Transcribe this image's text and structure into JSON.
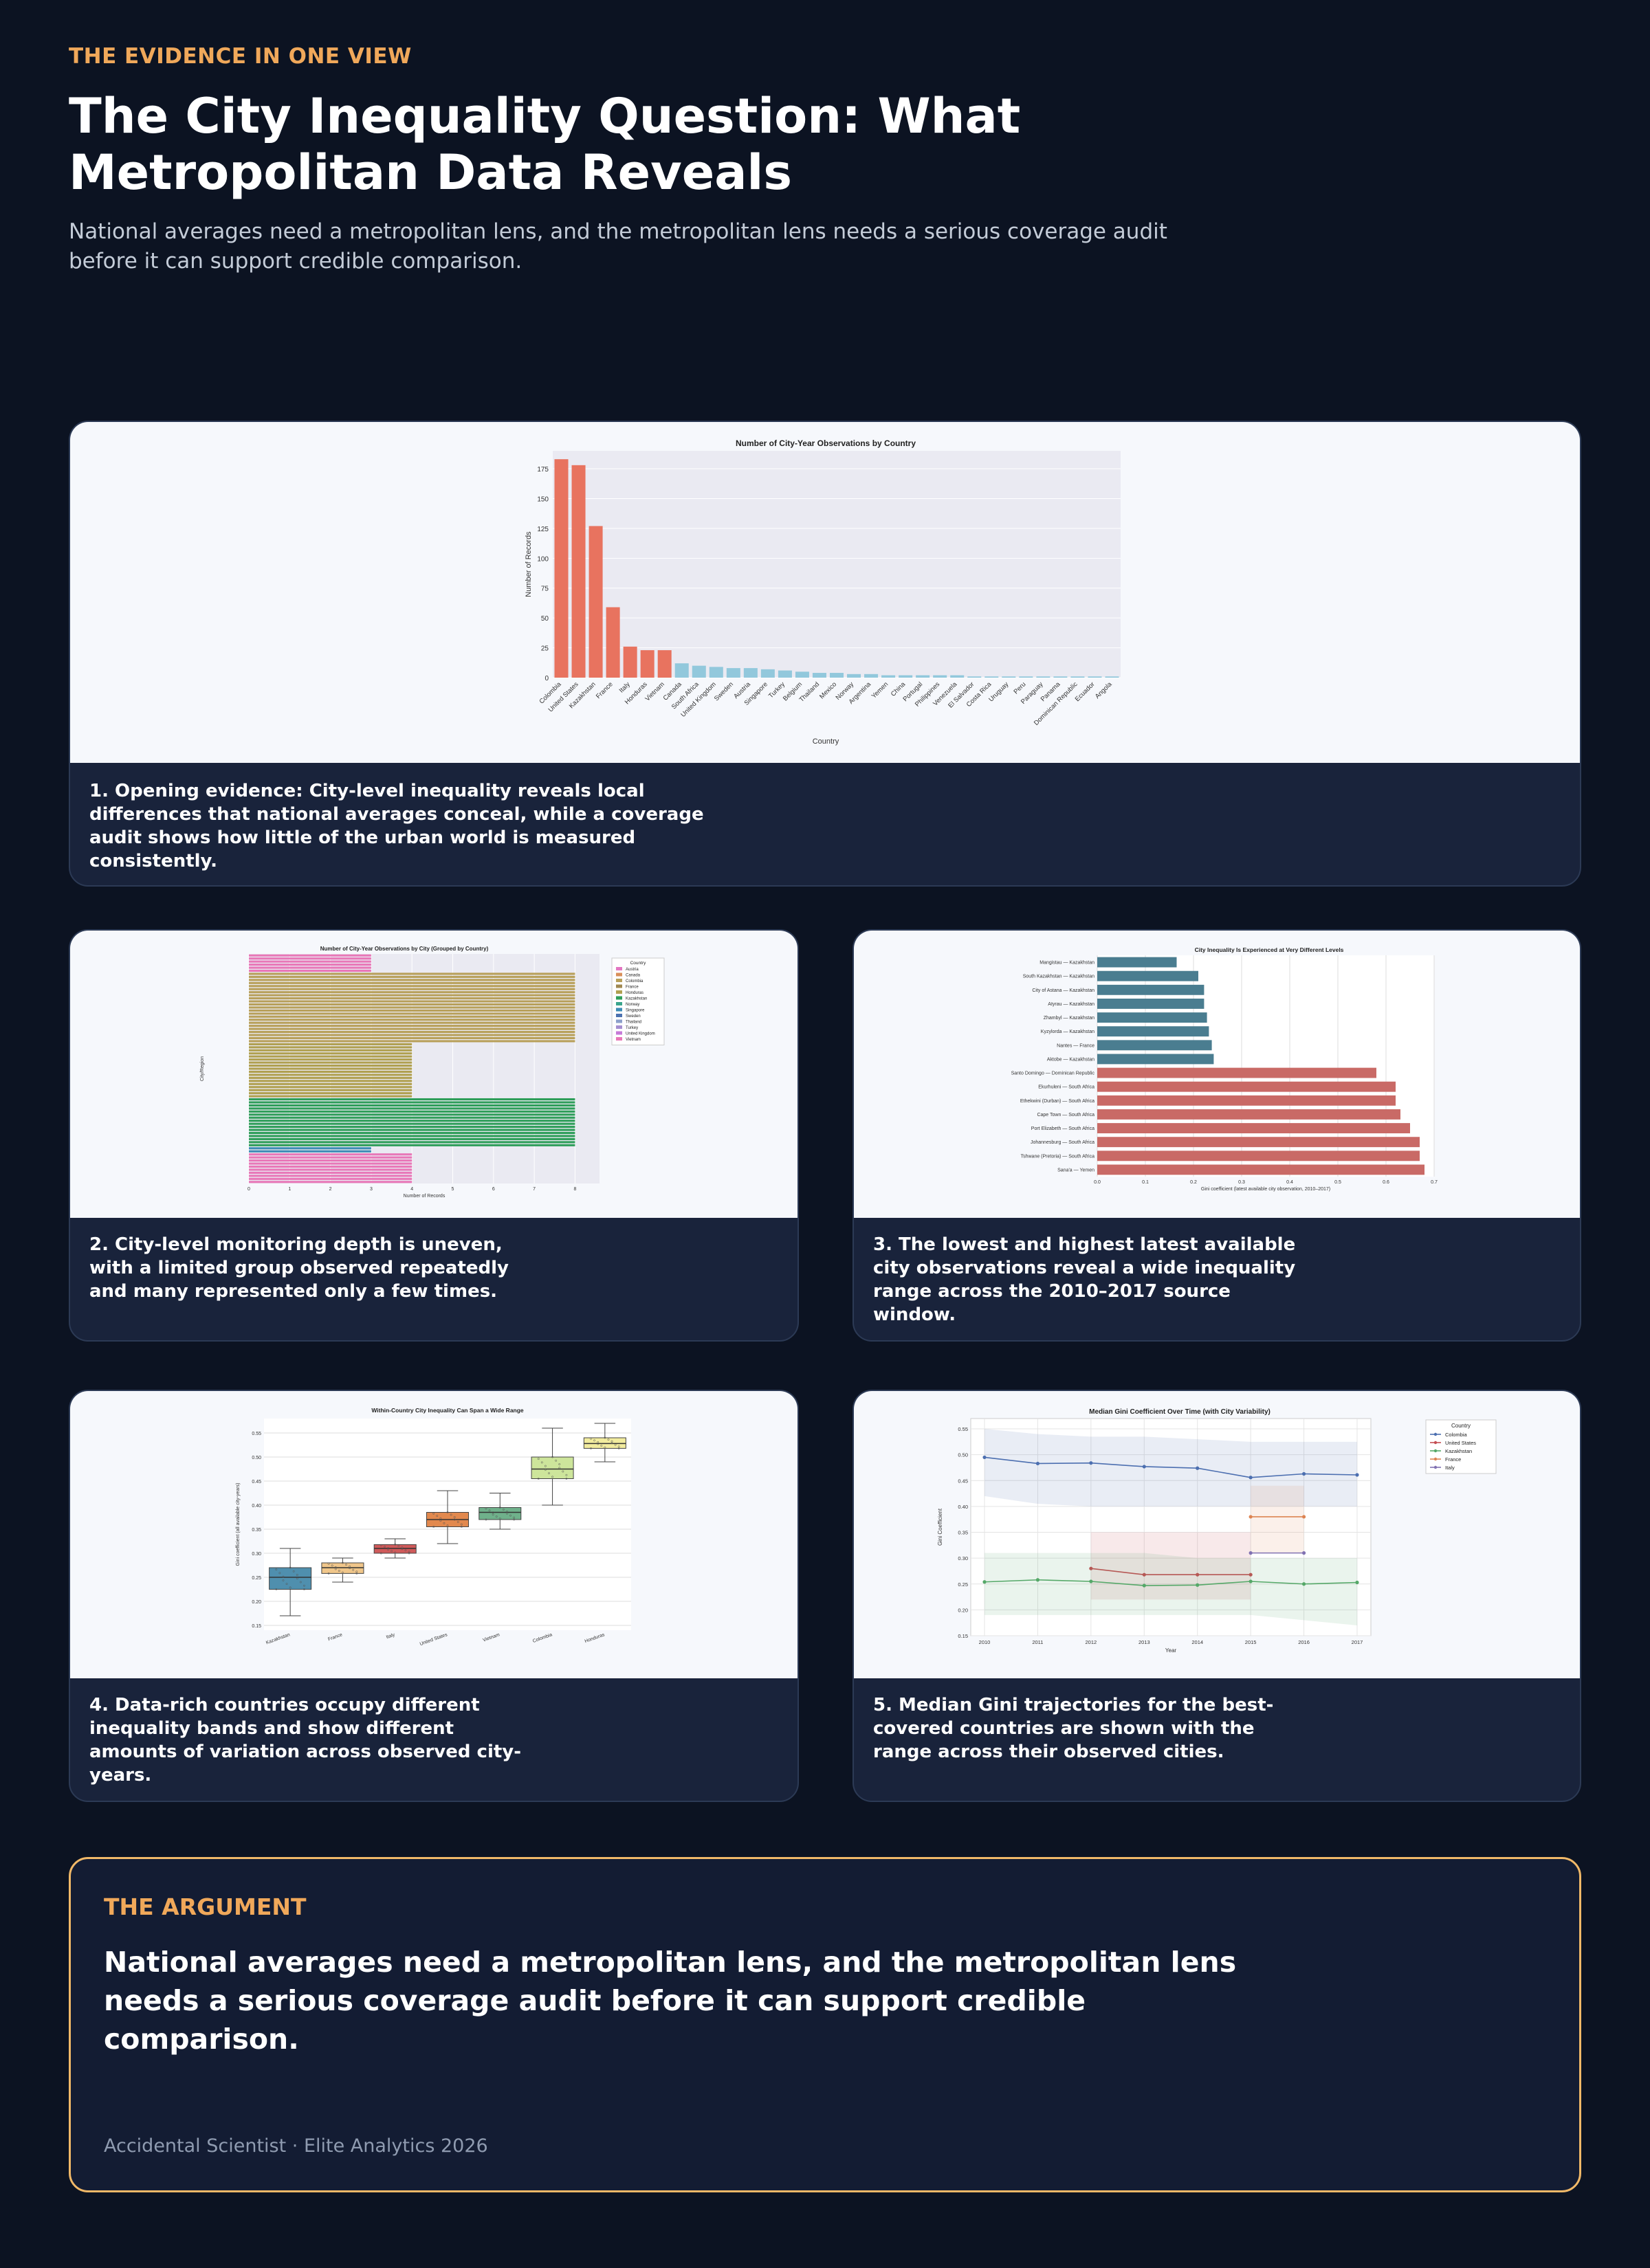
{
  "header": {
    "eyebrow": "THE EVIDENCE IN ONE VIEW",
    "title": "The City Inequality Question: What Metropolitan Data Reveals",
    "subtitle": "National averages need a metropolitan lens, and the metropolitan lens needs a serious coverage audit before it can support credible comparison."
  },
  "captions": {
    "c1": "1. Opening evidence: City-level inequality reveals local differences that national averages conceal, while a coverage audit shows how little of the urban world is measured consistently.",
    "c2": "2. City-level monitoring depth is uneven, with a limited group observed repeatedly and many represented only a few times.",
    "c3": "3. The lowest and highest latest available city observations reveal a wide inequality range across the 2010–2017 source window.",
    "c4": "4. Data-rich countries occupy different inequality bands and show different amounts of variation across observed city-years.",
    "c5": "5. Median Gini trajectories for the best-covered countries are shown with the range across their observed cities."
  },
  "argument": {
    "label": "THE ARGUMENT",
    "text": "National averages need a metropolitan lens, and the metropolitan lens needs a serious coverage audit before it can support credible comparison.",
    "footer": "Accidental Scientist · Elite Analytics 2026"
  },
  "colors": {
    "accent": "#f0a85a",
    "highlight": "#e8735f",
    "muted": "#92c8dc",
    "teal": "#4a7d90",
    "red": "#c96a66"
  },
  "chart_data": [
    {
      "type": "bar",
      "title": "Number of City-Year Observations by Country",
      "xlabel": "Country",
      "ylabel": "Number of Records",
      "ylim": [
        0,
        190
      ],
      "yticks": [
        0,
        25,
        50,
        75,
        100,
        125,
        150,
        175
      ],
      "categories": [
        "Colombia",
        "United States",
        "Kazakhstan",
        "France",
        "Italy",
        "Honduras",
        "Vietnam",
        "Canada",
        "South Africa",
        "United Kingdom",
        "Sweden",
        "Austria",
        "Singapore",
        "Turkey",
        "Belgium",
        "Thailand",
        "Mexico",
        "Norway",
        "Argentina",
        "Yemen",
        "China",
        "Portugal",
        "Philippines",
        "Venezuela",
        "El Salvador",
        "Costa Rica",
        "Uruguay",
        "Peru",
        "Paraguay",
        "Panama",
        "Dominican Republic",
        "Ecuador",
        "Angola"
      ],
      "values": [
        183,
        178,
        127,
        59,
        26,
        23,
        23,
        12,
        10,
        9,
        8,
        8,
        7,
        6,
        5,
        4,
        4,
        3,
        3,
        2,
        2,
        2,
        2,
        2,
        1,
        1,
        1,
        1,
        1,
        1,
        1,
        1,
        1
      ],
      "highlighted_count": 7
    },
    {
      "type": "bar",
      "title": "Number of City-Year Observations by City (Grouped by Country)",
      "xlabel": "Number of Records",
      "ylabel": "City/Region",
      "xlim": [
        0,
        8.6
      ],
      "xticks": [
        0,
        1,
        2,
        3,
        4,
        5,
        6,
        7,
        8
      ],
      "legend_title": "Country",
      "legend": [
        "Austria",
        "Canada",
        "Colombia",
        "France",
        "Honduras",
        "Kazakhstan",
        "Norway",
        "Singapore",
        "Sweden",
        "Thailand",
        "Turkey",
        "United Kingdom",
        "Vietnam"
      ],
      "groups": [
        {
          "country": "Vietnam",
          "rows": 6,
          "value": 3
        },
        {
          "country": "Colombia",
          "rows": 23,
          "value": 8
        },
        {
          "country": "Honduras",
          "rows": 18,
          "value": 4
        },
        {
          "country": "Kazakhstan",
          "rows": 16,
          "value": 8
        },
        {
          "country": "Singapore",
          "rows": 2,
          "value": 3
        },
        {
          "country": "Vietnam",
          "rows": 10,
          "value": 4
        }
      ]
    },
    {
      "type": "bar",
      "title": "City Inequality Is Experienced at Very Different Levels",
      "xlabel": "Gini coefficient (latest available city observation, 2010–2017)",
      "xlim": [
        0,
        0.7
      ],
      "xticks": [
        "0.0",
        "0.1",
        "0.2",
        "0.3",
        "0.4",
        "0.5",
        "0.6",
        "0.7"
      ],
      "categories": [
        "Mangistau — Kazakhstan",
        "South Kazakhstan — Kazakhstan",
        "City of Astana — Kazakhstan",
        "Atyrau — Kazakhstan",
        "Zhambyl — Kazakhstan",
        "Kyzylorda — Kazakhstan",
        "Nantes — France",
        "Aktobe — Kazakhstan",
        "Santo Domingo — Dominican Republic",
        "Ekurhuleni — South Africa",
        "Ethekwini (Durban) — South Africa",
        "Cape Town — South Africa",
        "Port Elizabeth — South Africa",
        "Johannesburg — South Africa",
        "Tshwane (Pretoria) — South Africa",
        "Sana'a — Yemen"
      ],
      "values": [
        0.165,
        0.21,
        0.222,
        0.222,
        0.228,
        0.232,
        0.238,
        0.242,
        0.58,
        0.62,
        0.62,
        0.63,
        0.65,
        0.67,
        0.67,
        0.68
      ]
    },
    {
      "type": "box",
      "title": "Within-Country City Inequality Can Span a Wide Range",
      "ylabel": "Gini coefficient (all available city-years)",
      "ylim": [
        0.14,
        0.58
      ],
      "yticks": [
        0.15,
        0.2,
        0.25,
        0.3,
        0.35,
        0.4,
        0.45,
        0.5,
        0.55
      ],
      "categories": [
        "Kazakhstan",
        "France",
        "Italy",
        "United States",
        "Vietnam",
        "Colombia",
        "Honduras"
      ],
      "boxes": [
        {
          "min": 0.17,
          "q1": 0.225,
          "median": 0.25,
          "q3": 0.27,
          "max": 0.31,
          "color": "#4f8fae"
        },
        {
          "min": 0.24,
          "q1": 0.258,
          "median": 0.27,
          "q3": 0.28,
          "max": 0.29,
          "color": "#f0c68a"
        },
        {
          "min": 0.29,
          "q1": 0.3,
          "median": 0.31,
          "q3": 0.318,
          "max": 0.33,
          "color": "#d05a5a"
        },
        {
          "min": 0.32,
          "q1": 0.355,
          "median": 0.37,
          "q3": 0.385,
          "max": 0.43,
          "color": "#e2894e"
        },
        {
          "min": 0.35,
          "q1": 0.37,
          "median": 0.385,
          "q3": 0.395,
          "max": 0.425,
          "color": "#6fb18b"
        },
        {
          "min": 0.4,
          "q1": 0.455,
          "median": 0.475,
          "q3": 0.5,
          "max": 0.56,
          "color": "#cde59b"
        },
        {
          "min": 0.49,
          "q1": 0.518,
          "median": 0.528,
          "q3": 0.54,
          "max": 0.57,
          "color": "#f2ec9e"
        }
      ]
    },
    {
      "type": "line",
      "title": "Median Gini Coefficient Over Time (with City Variability)",
      "xlabel": "Year",
      "ylabel": "Gini Coefficient",
      "ylim": [
        0.15,
        0.57
      ],
      "yticks": [
        0.15,
        0.2,
        0.25,
        0.3,
        0.35,
        0.4,
        0.45,
        0.5,
        0.55
      ],
      "x": [
        2010,
        2011,
        2012,
        2013,
        2014,
        2015,
        2016,
        2017
      ],
      "legend_title": "Country",
      "series": [
        {
          "name": "Colombia",
          "color": "#4c6fb0",
          "points": [
            [
              2010,
              0.495
            ],
            [
              2011,
              0.483
            ],
            [
              2012,
              0.484
            ],
            [
              2013,
              0.477
            ],
            [
              2014,
              0.474
            ],
            [
              2015,
              0.456
            ],
            [
              2016,
              0.463
            ],
            [
              2017,
              0.461
            ]
          ],
          "band_low": [
            0.42,
            0.405,
            0.4,
            0.4,
            0.4,
            0.4,
            0.4,
            0.4
          ],
          "band_high": [
            0.55,
            0.54,
            0.535,
            0.535,
            0.53,
            0.525,
            0.525,
            0.525
          ]
        },
        {
          "name": "United States",
          "color": "#c44e52",
          "points": [
            [
              2012,
              0.28
            ],
            [
              2013,
              0.268
            ],
            [
              2014,
              0.268
            ],
            [
              2015,
              0.268
            ]
          ],
          "band_low": [
            0.22,
            0.22,
            0.22,
            0.22
          ],
          "band_high": [
            0.35,
            0.35,
            0.35,
            0.35
          ]
        },
        {
          "name": "Kazakhstan",
          "color": "#55a868",
          "points": [
            [
              2010,
              0.254
            ],
            [
              2011,
              0.258
            ],
            [
              2012,
              0.255
            ],
            [
              2013,
              0.247
            ],
            [
              2014,
              0.248
            ],
            [
              2015,
              0.255
            ],
            [
              2016,
              0.25
            ],
            [
              2017,
              0.253
            ]
          ],
          "band_low": [
            0.19,
            0.19,
            0.19,
            0.19,
            0.19,
            0.19,
            0.18,
            0.17
          ],
          "band_high": [
            0.31,
            0.31,
            0.31,
            0.31,
            0.3,
            0.3,
            0.3,
            0.3
          ]
        },
        {
          "name": "France",
          "color": "#dd8452",
          "points": [
            [
              2015,
              0.38
            ],
            [
              2016,
              0.38
            ]
          ],
          "band_low": [
            0.31,
            0.31
          ],
          "band_high": [
            0.44,
            0.44
          ]
        },
        {
          "name": "Italy",
          "color": "#8172b2",
          "points": [
            [
              2015,
              0.31
            ],
            [
              2016,
              0.31
            ]
          ],
          "band_low": [
            0.31,
            0.31
          ],
          "band_high": [
            0.31,
            0.31
          ]
        }
      ]
    }
  ]
}
